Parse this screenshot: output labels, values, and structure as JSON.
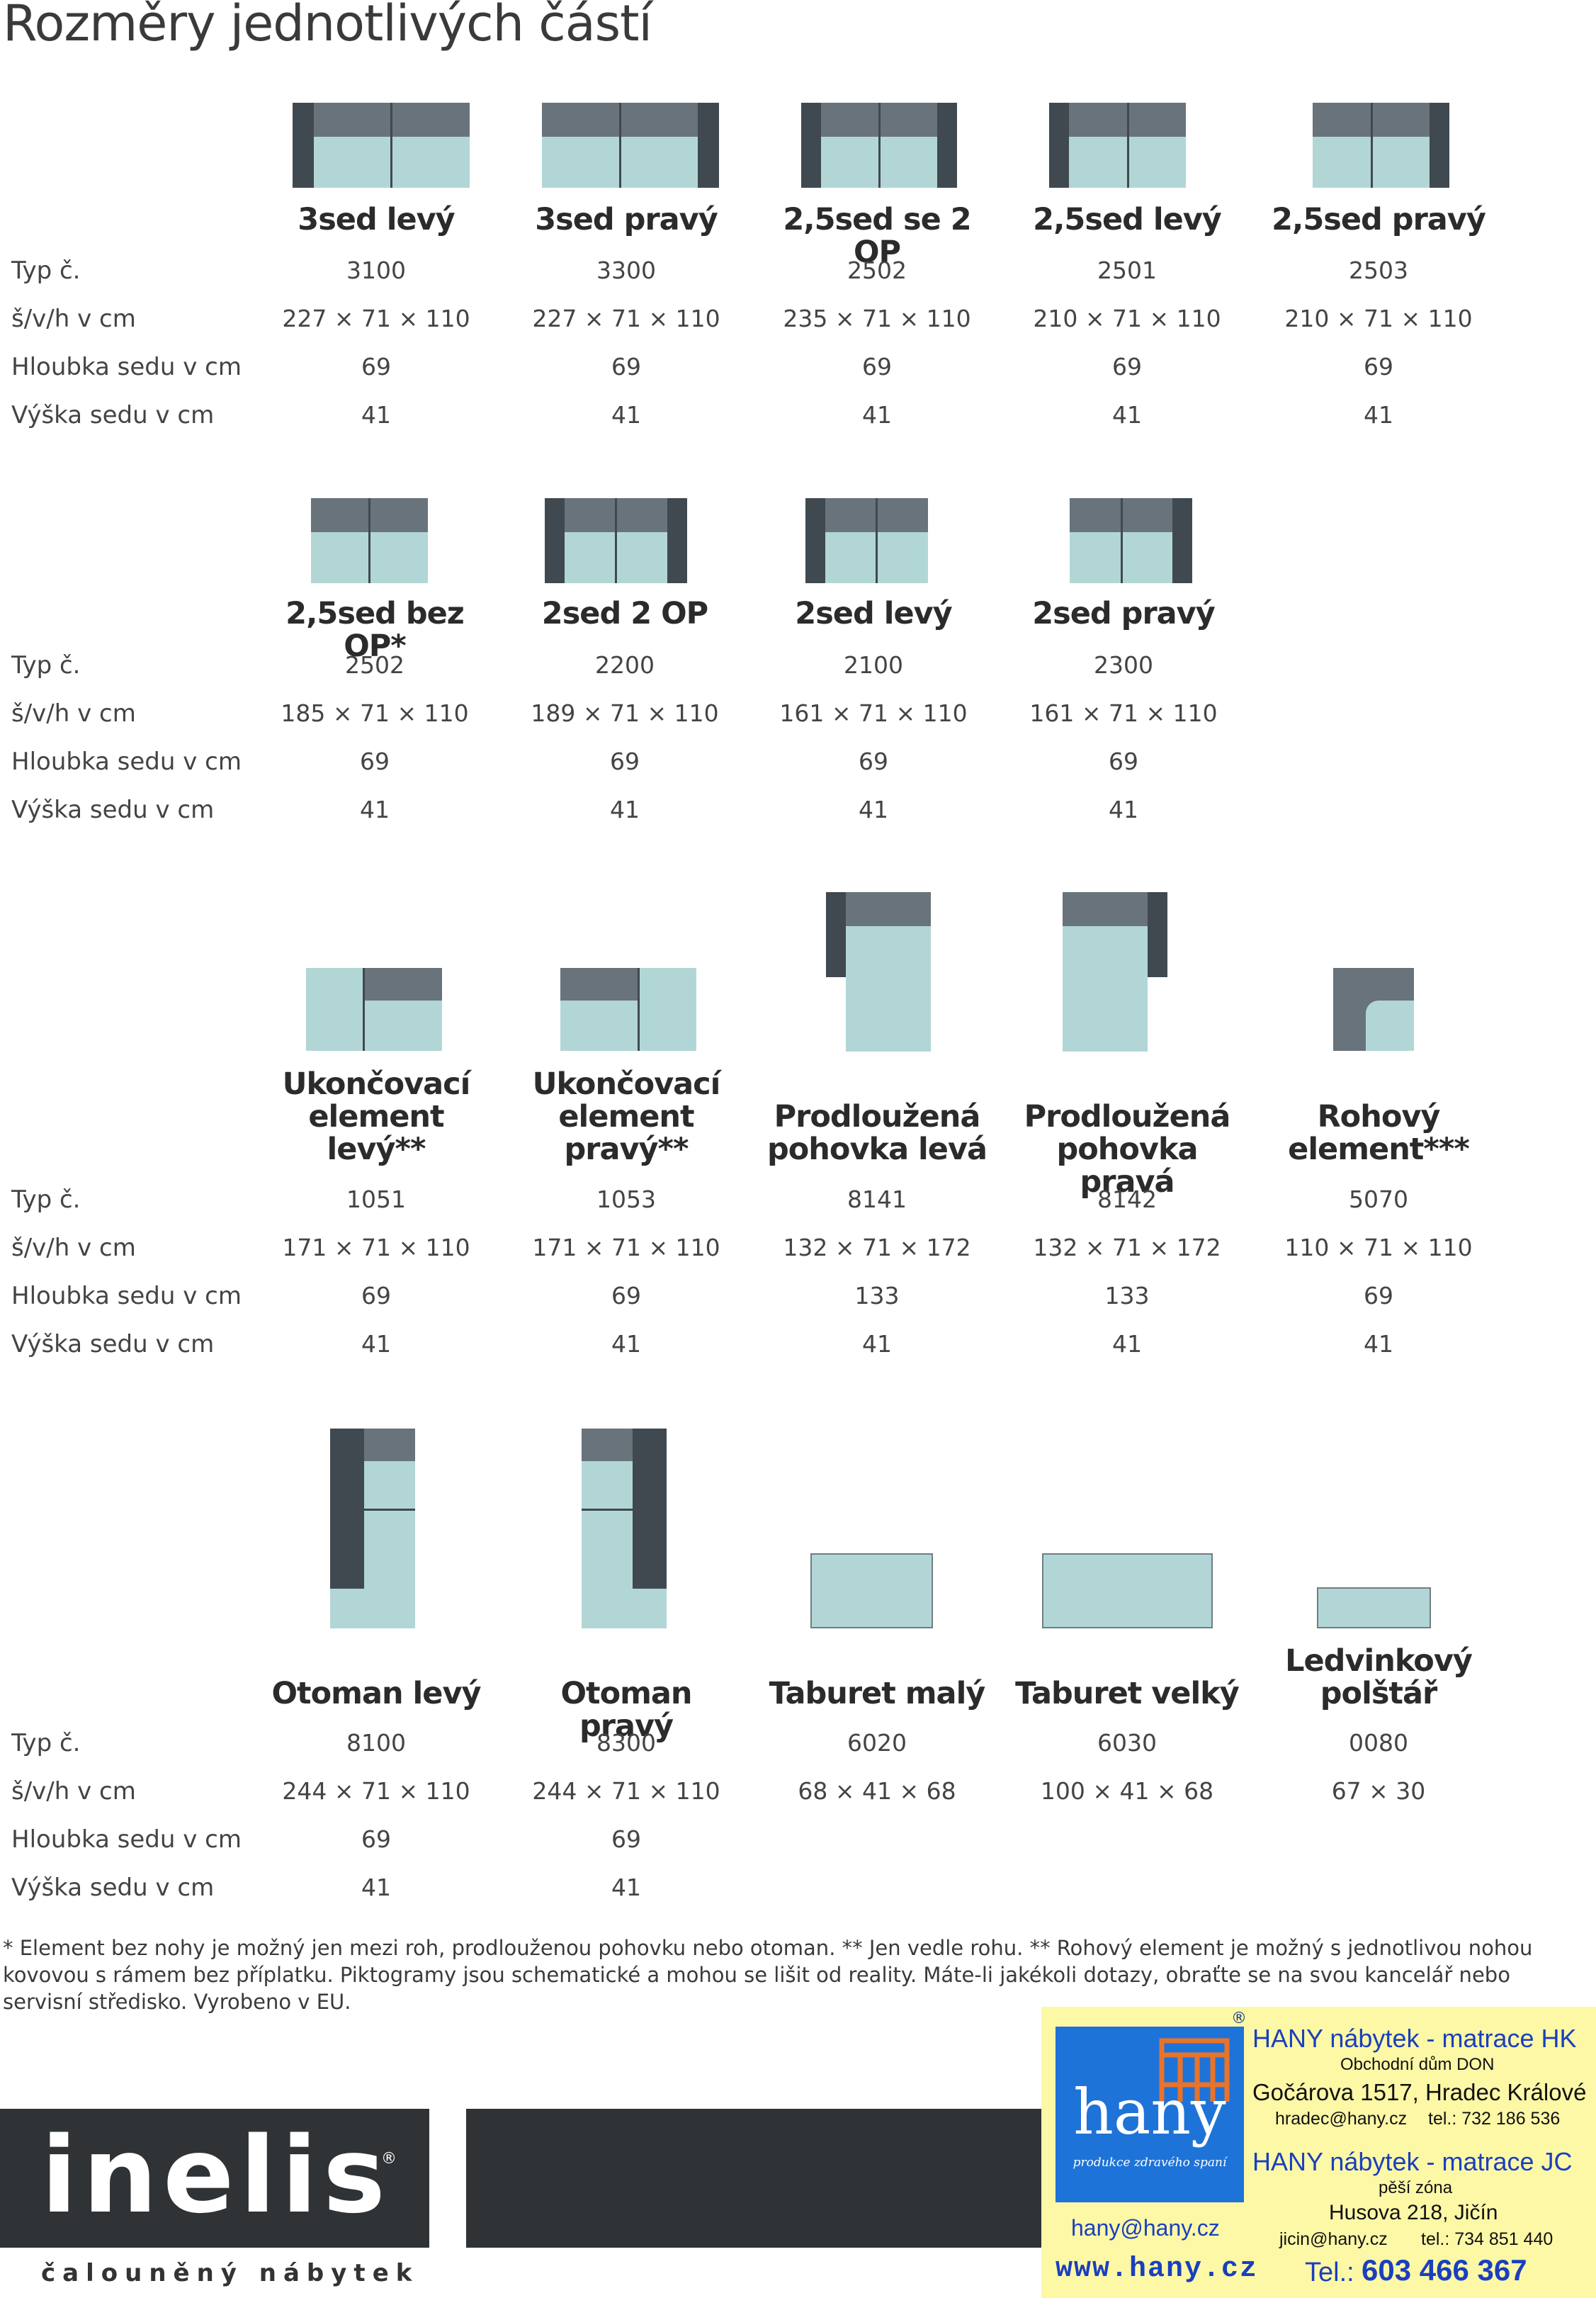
{
  "page_title": "Rozměry jednotlivých částí",
  "row_labels": {
    "type": "Typ č.",
    "dims": "š/v/h v cm",
    "depth": "Hloubka sedu v cm",
    "height": "Výška sedu v cm"
  },
  "groups": [
    {
      "items": [
        {
          "name": "3sed levý",
          "type": "3100",
          "dims": "227 × 71 × 110",
          "depth": "69",
          "height": "41"
        },
        {
          "name": "3sed pravý",
          "type": "3300",
          "dims": "227 × 71 × 110",
          "depth": "69",
          "height": "41"
        },
        {
          "name": "2,5sed se 2 OP",
          "type": "2502",
          "dims": "235 × 71 × 110",
          "depth": "69",
          "height": "41"
        },
        {
          "name": "2,5sed levý",
          "type": "2501",
          "dims": "210 × 71 × 110",
          "depth": "69",
          "height": "41"
        },
        {
          "name": "2,5sed pravý",
          "type": "2503",
          "dims": "210 × 71 × 110",
          "depth": "69",
          "height": "41"
        }
      ]
    },
    {
      "items": [
        {
          "name": "2,5sed bez OP*",
          "type": "2502",
          "dims": "185 × 71 × 110",
          "depth": "69",
          "height": "41"
        },
        {
          "name": "2sed 2 OP",
          "type": "2200",
          "dims": "189 × 71 × 110",
          "depth": "69",
          "height": "41"
        },
        {
          "name": "2sed levý",
          "type": "2100",
          "dims": "161 × 71 × 110",
          "depth": "69",
          "height": "41"
        },
        {
          "name": "2sed pravý",
          "type": "2300",
          "dims": "161 × 71 × 110",
          "depth": "69",
          "height": "41"
        }
      ]
    },
    {
      "items": [
        {
          "name_lines": [
            "Ukončovací",
            "element",
            "levý**"
          ],
          "type": "1051",
          "dims": "171 × 71 × 110",
          "depth": "69",
          "height": "41"
        },
        {
          "name_lines": [
            "Ukončovací",
            "element",
            "pravý**"
          ],
          "type": "1053",
          "dims": "171 × 71 × 110",
          "depth": "69",
          "height": "41"
        },
        {
          "name_lines": [
            "Prodloužená",
            "pohovka levá"
          ],
          "type": "8141",
          "dims": "132 × 71 × 172",
          "depth": "133",
          "height": "41"
        },
        {
          "name_lines": [
            "Prodloužená",
            "pohovka pravá"
          ],
          "type": "8142",
          "dims": "132 × 71 × 172",
          "depth": "133",
          "height": "41"
        },
        {
          "name_lines": [
            "Rohový",
            "element***"
          ],
          "type": "5070",
          "dims": "110 × 71 × 110",
          "depth": "69",
          "height": "41"
        }
      ]
    },
    {
      "items": [
        {
          "name": "Otoman levý",
          "type": "8100",
          "dims": "244 × 71 × 110",
          "depth": "69",
          "height": "41"
        },
        {
          "name": "Otoman pravý",
          "type": "8300",
          "dims": "244 × 71 × 110",
          "depth": "69",
          "height": "41"
        },
        {
          "name": "Taburet malý",
          "type": "6020",
          "dims": "68 × 41 × 68",
          "depth": "",
          "height": ""
        },
        {
          "name": "Taburet velký",
          "type": "6030",
          "dims": "100 × 41 × 68",
          "depth": "",
          "height": ""
        },
        {
          "name_lines": [
            "Ledvinkový",
            "polštář"
          ],
          "type": "0080",
          "dims": "67 × 30",
          "depth": "",
          "height": ""
        }
      ]
    }
  ],
  "footnote": "* Element bez nohy je možný jen mezi roh, prodlouženou pohovku nebo otoman. ** Jen vedle rohu. ** Rohový element je možný s jednotlivou nohou kovovou s rámem bez příplatku. Piktogramy jsou schematické a mohou se lišit od reality. Máte-li jakékoli dotazy, obraťte se na svou kancelář nebo servisní středisko. Vyrobeno v EU.",
  "brand": {
    "logo_text": "inelis",
    "registered": "®",
    "tagline": "čalouněný nábytek"
  },
  "hany_ad": {
    "logo_word": "hany",
    "logo_slogan": "produkce zdravého spaní",
    "registered": "®",
    "store1_title": "HANY nábytek - matrace HK",
    "store1_sub": "Obchodní dům DON",
    "store1_addr": "Gočárova 1517, Hradec Králové",
    "store1_email": "hradec@hany.cz",
    "store1_tel": "tel.: 732 186 536",
    "store2_title": "HANY nábytek - matrace JC",
    "store2_sub": "pěší zóna",
    "store2_addr": "Husova 218, Jičín",
    "store2_email": "jicin@hany.cz",
    "store2_tel": "tel.: 734 851 440",
    "email": "hany@hany.cz",
    "web": "www.hany.cz",
    "phone_label": "Tel.:",
    "phone": "603 466 367"
  },
  "colors": {
    "pictogram_seat": "#b2d6d6",
    "pictogram_back": "#68737b",
    "pictogram_arm": "#404950",
    "brand_dark": "#2f3336",
    "ad_background": "#fdf8a6",
    "ad_blue": "#1a3fbf",
    "hany_logo_blue": "#1e73d8"
  }
}
